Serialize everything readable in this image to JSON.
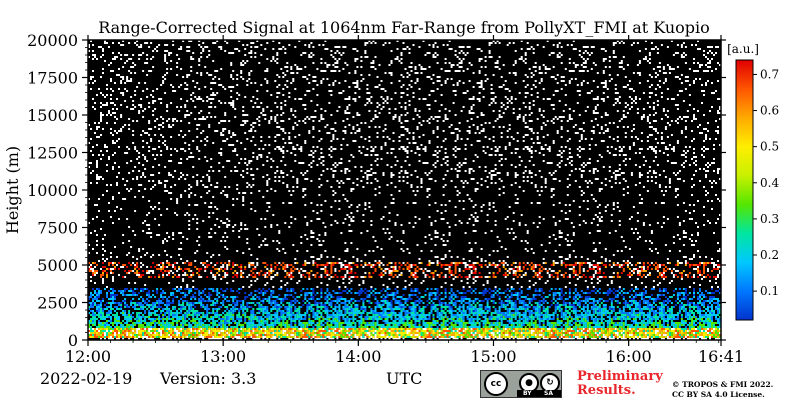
{
  "chart_data": {
    "type": "heatmap",
    "title": "Range-Corrected Signal at 1064nm Far-Range from PollyXT_FMI at Kuopio",
    "xlabel": "",
    "ylabel": "Height (m)",
    "x_ticks": [
      "12:00",
      "13:00",
      "14:00",
      "15:00",
      "16:00",
      "16:41"
    ],
    "x_tick_values_hours": [
      12.0,
      13.0,
      14.0,
      15.0,
      16.0,
      16.6833
    ],
    "xlim_hours": [
      12.0,
      16.6833
    ],
    "y_ticks": [
      "0",
      "2500",
      "5000",
      "7500",
      "10000",
      "12500",
      "15000",
      "17500",
      "20000"
    ],
    "y_tick_values": [
      0,
      2500,
      5000,
      7500,
      10000,
      12500,
      15000,
      17500,
      20000
    ],
    "ylim": [
      0,
      20000
    ],
    "colorbar": {
      "label": "[a.u.]",
      "ticks": [
        "0.1",
        "0.2",
        "0.3",
        "0.4",
        "0.5",
        "0.6",
        "0.7"
      ],
      "tick_values": [
        0.1,
        0.2,
        0.3,
        0.4,
        0.5,
        0.6,
        0.7
      ],
      "range": [
        0.02,
        0.74
      ],
      "colormap": [
        "#0033cc",
        "#0077ff",
        "#00c8ff",
        "#00e6a0",
        "#55e600",
        "#c8f000",
        "#ffee00",
        "#ffaa00",
        "#ff5500",
        "#e00000"
      ]
    },
    "features": {
      "near_surface_high_signal_m": [
        200,
        800
      ],
      "boundary_layer_top_m": 3500,
      "elevated_layer_m": [
        4200,
        5200
      ],
      "background": "#000000"
    }
  },
  "footer": {
    "date": "2022-02-19",
    "version": "Version: 3.3",
    "utc": "UTC",
    "preliminary_line1": "Preliminary",
    "preliminary_line2": "Results.",
    "license_line1": "© TROPOS & FMI 2022.",
    "license_line2": "CC BY SA 4.0 License.",
    "cc_badge": {
      "cc": "cc",
      "by": "BY",
      "sa": "SA",
      "icon": "creative-commons-badge"
    }
  }
}
